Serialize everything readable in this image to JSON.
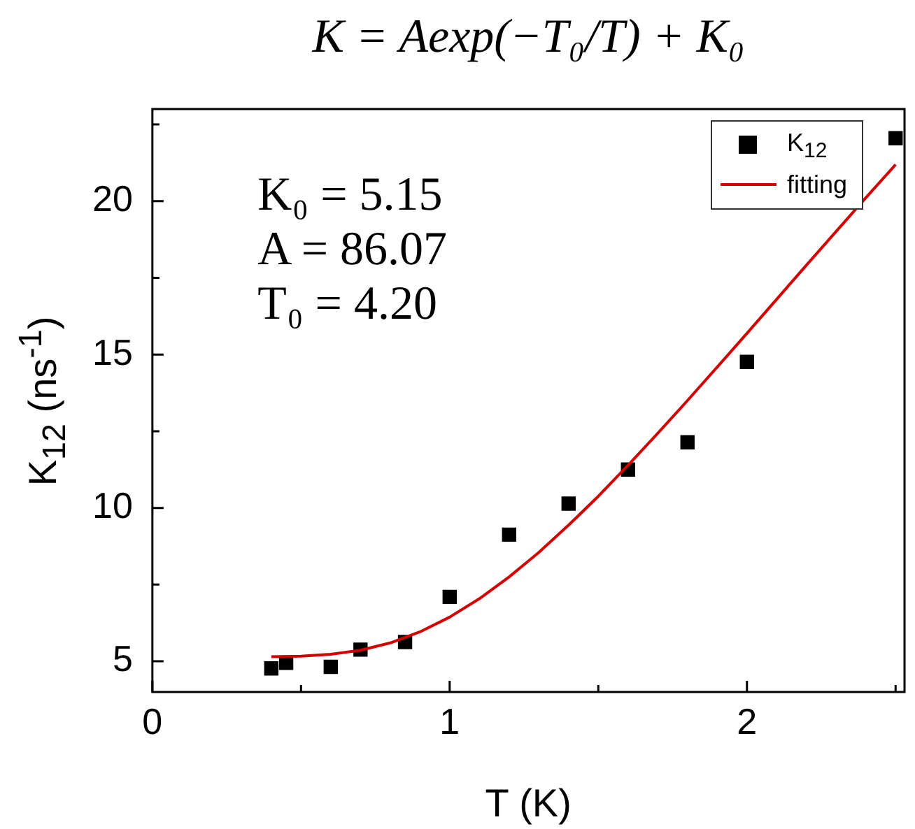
{
  "chart_data": {
    "type": "scatter",
    "title": "K = Aexp(−T₀/T) + K₀",
    "xlabel": "T (K)",
    "ylabel": "K$_{12}$ (ns$^{-1}$)",
    "xlim": [
      0,
      2.53
    ],
    "ylim": [
      4,
      23
    ],
    "xticks": [
      0,
      {
        "value": 0.5,
        "label": null
      },
      1,
      {
        "value": 1.5,
        "label": null
      },
      2,
      {
        "value": 2.5,
        "label": null
      }
    ],
    "yticks": [
      5,
      {
        "value": 7.5,
        "label": null
      },
      10,
      {
        "value": 12.5,
        "label": null
      },
      15,
      {
        "value": 17.5,
        "label": null
      },
      20,
      {
        "value": 22.5,
        "label": null
      }
    ],
    "annotations": [
      "K₀ = 5.15",
      "A = 86.07",
      "T₀ = 4.20"
    ],
    "legend": "top right",
    "marker": "square",
    "grid": false,
    "series": [
      {
        "name": "K$_{12}$",
        "color": "#000000",
        "x": [
          0.4,
          0.45,
          0.6,
          0.7,
          0.85,
          1.0,
          1.2,
          1.4,
          1.6,
          1.8,
          2.0,
          2.5
        ],
        "values": [
          4.77,
          4.95,
          4.82,
          5.38,
          5.63,
          7.1,
          9.13,
          10.14,
          11.25,
          12.14,
          14.76,
          22.05
        ]
      },
      {
        "name": "fitting",
        "type": "line",
        "marker": "none",
        "color": "#d40000",
        "x": [
          0.4,
          0.5,
          0.6,
          0.7,
          0.8,
          0.9,
          1.0,
          1.1,
          1.2,
          1.3,
          1.4,
          1.5,
          1.6,
          1.7,
          1.8,
          1.9,
          2.0,
          2.1,
          2.2,
          2.3,
          2.4,
          2.5
        ],
        "values": [
          5.15,
          5.17,
          5.23,
          5.36,
          5.6,
          5.96,
          6.44,
          7.04,
          7.75,
          8.55,
          9.44,
          10.38,
          11.39,
          12.43,
          13.5,
          14.59,
          15.69,
          16.8,
          17.91,
          19.01,
          20.11,
          21.19
        ]
      }
    ]
  }
}
